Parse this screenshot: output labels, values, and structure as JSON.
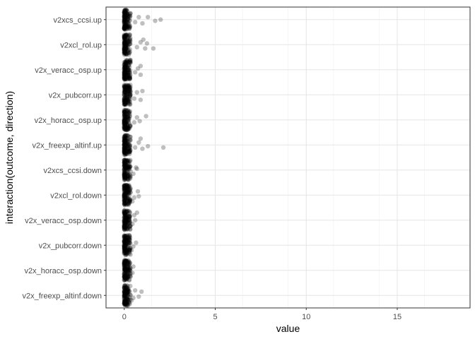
{
  "chart_data": {
    "type": "scatter",
    "xlabel": "value",
    "ylabel": "interaction(outcome, direction)",
    "xlim": [
      -1,
      19
    ],
    "x_ticks": [
      0,
      5,
      10,
      15
    ],
    "grid": true,
    "point_color": "#000000",
    "point_opacity": 0.25,
    "categories": [
      "v2x_freexp_altinf.down",
      "v2x_horacc_osp.down",
      "v2x_pubcorr.down",
      "v2x_veracc_osp.down",
      "v2xcl_rol.down",
      "v2xcs_ccsi.down",
      "v2x_freexp_altinf.up",
      "v2x_horacc_osp.up",
      "v2x_pubcorr.up",
      "v2x_veracc_osp.up",
      "v2xcl_rol.up",
      "v2xcs_ccsi.up"
    ],
    "series": [
      {
        "category": "v2x_freexp_altinf.down",
        "outliers": [
          [
            0.5,
            0.1
          ],
          [
            0.6,
            -0.2
          ],
          [
            0.8,
            0.05
          ],
          [
            0.95,
            -0.15
          ],
          [
            0.4,
            0.2
          ]
        ]
      },
      {
        "category": "v2x_horacc_osp.down",
        "outliers": [
          [
            0.45,
            0.1
          ],
          [
            0.5,
            -0.15
          ],
          [
            0.35,
            0.25
          ]
        ]
      },
      {
        "category": "v2x_pubcorr.down",
        "outliers": [
          [
            0.5,
            0.05
          ],
          [
            0.65,
            -0.1
          ],
          [
            0.4,
            0.2
          ]
        ]
      },
      {
        "category": "v2x_veracc_osp.down",
        "outliers": [
          [
            0.45,
            0.15
          ],
          [
            0.6,
            0.0
          ],
          [
            0.55,
            -0.2
          ],
          [
            0.7,
            -0.3
          ]
        ]
      },
      {
        "category": "v2xcl_rol.down",
        "outliers": [
          [
            0.55,
            0.1
          ],
          [
            0.75,
            -0.15
          ],
          [
            0.8,
            0.05
          ],
          [
            0.45,
            0.25
          ]
        ]
      },
      {
        "category": "v2xcs_ccsi.down",
        "outliers": [
          [
            0.5,
            0.15
          ],
          [
            0.7,
            -0.05
          ],
          [
            0.65,
            -0.1
          ]
        ]
      },
      {
        "category": "v2x_freexp_altinf.up",
        "outliers": [
          [
            0.6,
            0.1
          ],
          [
            0.8,
            -0.1
          ],
          [
            1.0,
            0.15
          ],
          [
            1.3,
            0.05
          ],
          [
            2.15,
            0.1
          ],
          [
            0.9,
            -0.25
          ]
        ]
      },
      {
        "category": "v2x_horacc_osp.up",
        "outliers": [
          [
            0.55,
            0.1
          ],
          [
            0.7,
            -0.1
          ],
          [
            0.85,
            0.05
          ],
          [
            1.2,
            -0.15
          ]
        ]
      },
      {
        "category": "v2x_pubcorr.up",
        "outliers": [
          [
            0.55,
            0.15
          ],
          [
            0.7,
            -0.1
          ],
          [
            0.9,
            0.2
          ],
          [
            1.0,
            -0.15
          ]
        ]
      },
      {
        "category": "v2x_veracc_osp.up",
        "outliers": [
          [
            0.6,
            0.1
          ],
          [
            0.75,
            -0.05
          ],
          [
            0.9,
            0.2
          ],
          [
            0.9,
            -0.15
          ]
        ]
      },
      {
        "category": "v2xcl_rol.up",
        "outliers": [
          [
            0.7,
            0.1
          ],
          [
            0.9,
            -0.1
          ],
          [
            1.15,
            0.15
          ],
          [
            1.25,
            -0.05
          ],
          [
            1.6,
            0.15
          ],
          [
            1.05,
            -0.2
          ]
        ]
      },
      {
        "category": "v2xcs_ccsi.up",
        "outliers": [
          [
            0.6,
            0.1
          ],
          [
            0.8,
            -0.1
          ],
          [
            1.0,
            0.15
          ],
          [
            1.3,
            -0.1
          ],
          [
            1.7,
            0.05
          ],
          [
            2.0,
            0.0
          ]
        ]
      }
    ]
  }
}
